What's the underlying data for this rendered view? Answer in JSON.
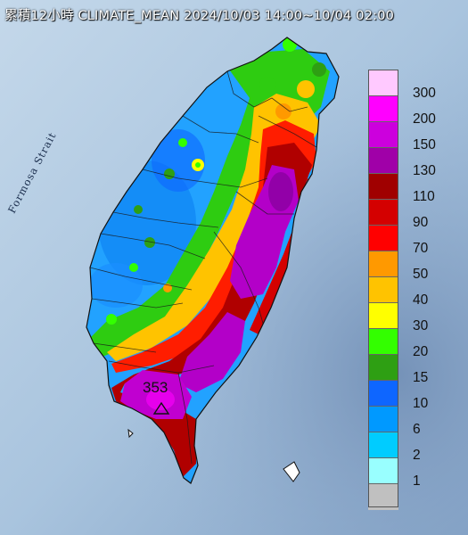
{
  "title": "累積12小時 CLIMATE_MEAN 2024/10/03 14:00~10/04 02:00",
  "sea_label": "Formosa Strait",
  "peak": {
    "value": "353",
    "marker": "triangle-marker-icon"
  },
  "legend": [
    {
      "label": "300",
      "color": "#ffc9ff"
    },
    {
      "label": "200",
      "color": "#ff00ff"
    },
    {
      "label": "150",
      "color": "#cc00dd"
    },
    {
      "label": "130",
      "color": "#a000a8"
    },
    {
      "label": "110",
      "color": "#a00000"
    },
    {
      "label": "90",
      "color": "#d40000"
    },
    {
      "label": "70",
      "color": "#ff0000"
    },
    {
      "label": "50",
      "color": "#ff9900"
    },
    {
      "label": "40",
      "color": "#ffc300"
    },
    {
      "label": "30",
      "color": "#ffff00"
    },
    {
      "label": "20",
      "color": "#33ff00"
    },
    {
      "label": "15",
      "color": "#2e9f13"
    },
    {
      "label": "10",
      "color": "#0e66ff"
    },
    {
      "label": "6",
      "color": "#0099ff"
    },
    {
      "label": "2",
      "color": "#00ccff"
    },
    {
      "label": "1",
      "color": "#99ffff"
    },
    {
      "label": "",
      "color": "#c0c0c0"
    }
  ]
}
